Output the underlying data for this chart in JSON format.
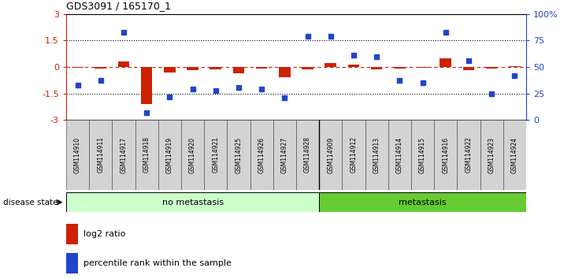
{
  "title": "GDS3091 / 165170_1",
  "samples": [
    "GSM114910",
    "GSM114911",
    "GSM114917",
    "GSM114918",
    "GSM114919",
    "GSM114920",
    "GSM114921",
    "GSM114925",
    "GSM114926",
    "GSM114927",
    "GSM114928",
    "GSM114909",
    "GSM114912",
    "GSM114913",
    "GSM114914",
    "GSM114915",
    "GSM114916",
    "GSM114922",
    "GSM114923",
    "GSM114924"
  ],
  "log2_ratio": [
    -0.05,
    -0.08,
    0.3,
    -2.1,
    -0.3,
    -0.2,
    -0.15,
    -0.35,
    -0.1,
    -0.6,
    -0.12,
    0.2,
    0.12,
    -0.12,
    -0.08,
    -0.05,
    0.5,
    -0.2,
    -0.1,
    0.04
  ],
  "percentile_rank": [
    33,
    37,
    83,
    7,
    22,
    29,
    28,
    31,
    29,
    21,
    79,
    79,
    61,
    60,
    37,
    35,
    83,
    56,
    25,
    42
  ],
  "no_metastasis_count": 11,
  "metastasis_count": 9,
  "bar_color": "#cc2200",
  "dot_color": "#2244cc",
  "no_meta_color": "#ccffcc",
  "meta_color": "#66cc33",
  "ylim": [
    -3,
    3
  ],
  "y2lim": [
    0,
    100
  ],
  "yticks": [
    -3,
    -1.5,
    0,
    1.5,
    3
  ],
  "y2ticks": [
    0,
    25,
    50,
    75,
    100
  ],
  "legend_items": [
    "log2 ratio",
    "percentile rank within the sample"
  ]
}
